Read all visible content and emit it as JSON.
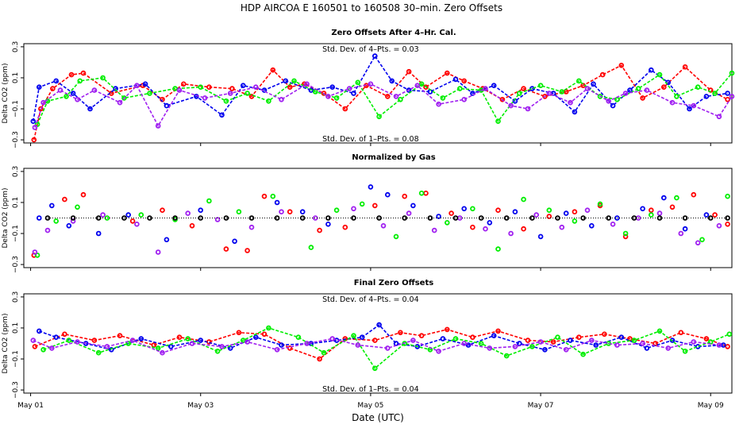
{
  "figure": {
    "title": "HDP   AIRCOA E   160501 to 160508   30–min. Zero Offsets",
    "xlabel": "Date (UTC)"
  },
  "colors": {
    "red": "#ff0000",
    "blue": "#0000ee",
    "green": "#00ee00",
    "purple": "#a020f0",
    "black": "#000000"
  },
  "chart_data": [
    {
      "type": "scatter",
      "title": "Zero Offsets After 4–Hr. Cal.",
      "ylabel": "Delta CO2 (ppm)",
      "xlabel": "",
      "ylim": [
        -0.32,
        0.32
      ],
      "xlim": [
        -0.08,
        8.25
      ],
      "yticks": [
        -0.3,
        -0.1,
        0.1,
        0.3
      ],
      "ytick_labels": [
        "−0.3",
        "−0.1",
        "0.1",
        "0.3"
      ],
      "xticks": [
        0,
        2,
        4,
        6,
        8
      ],
      "xtick_labels": [
        "May 01",
        "May 03",
        "May 05",
        "May 07",
        "May 09"
      ],
      "annotations": [
        "Std. Dev. of 4–Pts. =  0.03",
        "Std. Dev. of 1–Pts. =  0.08"
      ],
      "lines_connected": true,
      "series": [
        {
          "name": "red",
          "x": [
            0.04,
            0.12,
            0.26,
            0.48,
            0.62,
            0.95,
            1.32,
            1.55,
            1.8,
            2.1,
            2.37,
            2.6,
            2.85,
            3.05,
            3.22,
            3.45,
            3.7,
            3.95,
            4.2,
            4.45,
            4.65,
            4.9,
            5.1,
            5.32,
            5.55,
            5.8,
            6.05,
            6.3,
            6.5,
            6.73,
            6.95,
            7.2,
            7.45,
            7.7,
            8.0,
            8.2
          ],
          "y": [
            -0.3,
            -0.1,
            0.03,
            0.12,
            0.13,
            0.0,
            0.05,
            -0.04,
            0.06,
            0.04,
            0.03,
            -0.02,
            0.15,
            0.04,
            0.06,
            0.0,
            -0.1,
            0.05,
            -0.02,
            0.14,
            0.04,
            0.13,
            0.08,
            0.03,
            -0.04,
            0.03,
            -0.02,
            0.01,
            0.05,
            0.12,
            0.18,
            -0.03,
            0.04,
            0.17,
            0.02,
            -0.04
          ]
        },
        {
          "name": "blue",
          "x": [
            0.03,
            0.1,
            0.3,
            0.5,
            0.7,
            1.0,
            1.35,
            1.6,
            1.95,
            2.25,
            2.5,
            2.75,
            3.0,
            3.3,
            3.55,
            3.8,
            4.05,
            4.25,
            4.45,
            4.7,
            5.0,
            5.2,
            5.45,
            5.7,
            5.9,
            6.15,
            6.4,
            6.62,
            6.85,
            7.05,
            7.3,
            7.5,
            7.75,
            7.95,
            8.2
          ],
          "y": [
            -0.18,
            0.04,
            0.08,
            0.0,
            -0.1,
            0.03,
            0.06,
            -0.08,
            -0.02,
            -0.14,
            0.05,
            0.02,
            0.08,
            0.02,
            0.04,
            0.0,
            0.24,
            0.08,
            0.02,
            0.01,
            0.09,
            0.0,
            0.05,
            -0.05,
            0.03,
            0.0,
            -0.12,
            0.06,
            -0.08,
            0.02,
            0.15,
            0.07,
            -0.1,
            -0.02,
            0.0
          ]
        },
        {
          "name": "green",
          "x": [
            0.08,
            0.2,
            0.42,
            0.58,
            0.85,
            1.1,
            1.4,
            1.7,
            2.0,
            2.3,
            2.55,
            2.8,
            3.1,
            3.35,
            3.6,
            3.85,
            4.1,
            4.35,
            4.6,
            4.85,
            5.05,
            5.3,
            5.5,
            5.75,
            6.0,
            6.25,
            6.45,
            6.7,
            6.9,
            7.15,
            7.4,
            7.6,
            7.85,
            8.05,
            8.25
          ],
          "y": [
            -0.2,
            -0.05,
            -0.02,
            0.08,
            0.1,
            -0.03,
            0.0,
            0.03,
            0.04,
            -0.05,
            0.0,
            -0.05,
            0.08,
            0.01,
            -0.03,
            0.07,
            -0.15,
            -0.04,
            0.06,
            -0.03,
            0.03,
            0.02,
            -0.18,
            0.0,
            0.05,
            0.01,
            0.08,
            -0.02,
            -0.04,
            0.03,
            0.12,
            -0.02,
            0.04,
            0.0,
            0.13
          ]
        },
        {
          "name": "purple",
          "x": [
            0.05,
            0.15,
            0.35,
            0.55,
            0.75,
            1.05,
            1.25,
            1.5,
            1.75,
            2.05,
            2.35,
            2.65,
            2.95,
            3.25,
            3.5,
            3.75,
            4.0,
            4.3,
            4.55,
            4.8,
            5.1,
            5.35,
            5.65,
            5.85,
            6.1,
            6.35,
            6.55,
            6.8,
            7.0,
            7.25,
            7.55,
            7.8,
            8.1,
            8.25
          ],
          "y": [
            -0.22,
            -0.06,
            0.02,
            -0.04,
            0.02,
            -0.06,
            0.05,
            -0.21,
            0.02,
            -0.03,
            0.0,
            0.04,
            -0.04,
            0.06,
            -0.02,
            0.03,
            0.06,
            -0.02,
            0.05,
            -0.07,
            -0.04,
            0.03,
            -0.08,
            -0.1,
            0.0,
            -0.06,
            0.03,
            -0.05,
            0.0,
            0.02,
            -0.06,
            -0.08,
            -0.15,
            -0.02
          ]
        }
      ]
    },
    {
      "type": "scatter",
      "title": "Normalized by Gas",
      "ylabel": "Delta CO2 (ppm)",
      "xlabel": "",
      "ylim": [
        -0.32,
        0.32
      ],
      "xlim": [
        -0.08,
        8.25
      ],
      "yticks": [
        -0.3,
        -0.1,
        0.1,
        0.3
      ],
      "ytick_labels": [
        "−0.3",
        "−0.1",
        "0.1",
        "0.3"
      ],
      "xticks": [
        0,
        2,
        4,
        6,
        8
      ],
      "xtick_labels": [
        "May 01",
        "May 03",
        "May 05",
        "May 07",
        "May 09"
      ],
      "annotations": [],
      "lines_connected": false,
      "series": [
        {
          "name": "red",
          "x": [
            0.04,
            0.4,
            0.62,
            1.2,
            1.55,
            1.9,
            2.3,
            2.55,
            2.75,
            3.05,
            3.4,
            3.7,
            4.05,
            4.4,
            4.65,
            4.95,
            5.2,
            5.5,
            5.8,
            6.1,
            6.4,
            6.7,
            7.0,
            7.3,
            7.55,
            7.8,
            8.05,
            8.2
          ],
          "y": [
            -0.24,
            0.12,
            0.15,
            -0.02,
            0.05,
            -0.05,
            -0.2,
            -0.21,
            0.14,
            0.04,
            -0.08,
            -0.06,
            0.08,
            0.14,
            0.16,
            0.03,
            -0.06,
            0.05,
            -0.07,
            0.01,
            0.04,
            0.08,
            -0.12,
            0.05,
            0.07,
            0.15,
            0.02,
            -0.04
          ]
        },
        {
          "name": "blue",
          "x": [
            0.1,
            0.25,
            0.45,
            0.8,
            1.15,
            1.6,
            2.0,
            2.4,
            2.9,
            3.2,
            3.5,
            4.0,
            4.2,
            4.5,
            4.8,
            5.1,
            5.4,
            5.7,
            6.0,
            6.3,
            6.6,
            6.9,
            7.2,
            7.45,
            7.7,
            7.95
          ],
          "y": [
            0.0,
            0.08,
            -0.05,
            -0.1,
            0.02,
            -0.14,
            0.05,
            -0.15,
            0.1,
            0.04,
            -0.04,
            0.2,
            0.15,
            0.08,
            0.01,
            0.06,
            -0.03,
            0.04,
            -0.12,
            0.03,
            -0.05,
            0.0,
            0.06,
            0.13,
            -0.07,
            0.02
          ]
        },
        {
          "name": "green",
          "x": [
            0.08,
            0.3,
            0.55,
            0.9,
            1.3,
            1.7,
            2.1,
            2.45,
            2.85,
            3.3,
            3.6,
            3.9,
            4.3,
            4.6,
            4.9,
            5.2,
            5.5,
            5.8,
            6.1,
            6.4,
            6.7,
            7.0,
            7.3,
            7.6,
            7.9,
            8.2
          ],
          "y": [
            -0.24,
            -0.02,
            0.07,
            0.0,
            0.02,
            -0.01,
            0.11,
            0.04,
            0.14,
            -0.19,
            0.05,
            0.09,
            -0.12,
            0.16,
            -0.03,
            0.06,
            -0.2,
            0.12,
            0.05,
            -0.02,
            0.09,
            -0.1,
            0.02,
            0.13,
            -0.14,
            0.14
          ]
        },
        {
          "name": "purple",
          "x": [
            0.05,
            0.2,
            0.5,
            0.85,
            1.25,
            1.5,
            1.85,
            2.2,
            2.6,
            2.95,
            3.35,
            3.8,
            4.15,
            4.45,
            4.75,
            5.05,
            5.35,
            5.65,
            5.95,
            6.25,
            6.55,
            6.85,
            7.15,
            7.4,
            7.65,
            7.85,
            8.1
          ],
          "y": [
            -0.22,
            -0.08,
            -0.02,
            0.02,
            -0.04,
            -0.22,
            0.03,
            -0.01,
            -0.06,
            0.04,
            0.0,
            0.06,
            -0.05,
            0.03,
            -0.08,
            0.0,
            -0.07,
            -0.1,
            0.02,
            -0.06,
            0.05,
            -0.04,
            0.0,
            0.03,
            -0.1,
            -0.16,
            -0.05
          ]
        },
        {
          "name": "black",
          "x": [
            0.2,
            0.5,
            0.8,
            1.1,
            1.4,
            1.7,
            2.0,
            2.3,
            2.6,
            2.9,
            3.2,
            3.5,
            3.8,
            4.1,
            4.4,
            4.7,
            5.0,
            5.3,
            5.6,
            5.9,
            6.2,
            6.5,
            6.8,
            7.1,
            7.4,
            7.7,
            8.0,
            8.2
          ],
          "y": [
            0.0,
            0.0,
            0.0,
            0.0,
            0.0,
            0.0,
            0.0,
            0.0,
            0.0,
            0.0,
            0.0,
            0.0,
            0.0,
            0.0,
            0.0,
            0.0,
            0.0,
            0.0,
            0.0,
            0.0,
            0.0,
            0.0,
            0.0,
            0.0,
            0.0,
            0.0,
            0.0,
            0.0
          ]
        }
      ]
    },
    {
      "type": "scatter",
      "title": "Final Zero Offsets",
      "ylabel": "Delta CO2 (ppm)",
      "xlabel": "",
      "ylim": [
        -0.32,
        0.32
      ],
      "xlim": [
        -0.08,
        8.25
      ],
      "yticks": [
        -0.3,
        -0.1,
        0.1,
        0.3
      ],
      "ytick_labels": [
        "−0.3",
        "−0.1",
        "0.1",
        "0.3"
      ],
      "xticks": [
        0,
        2,
        4,
        6,
        8
      ],
      "xtick_labels": [
        "May 01",
        "May 03",
        "May 05",
        "May 07",
        "May 09"
      ],
      "annotations": [
        "Std. Dev. of 4–Pts. =  0.04",
        "Std. Dev. of 1–Pts. =  0.04"
      ],
      "lines_connected": true,
      "series": [
        {
          "name": "red",
          "x": [
            0.05,
            0.4,
            0.75,
            1.05,
            1.45,
            1.75,
            2.1,
            2.45,
            2.75,
            3.05,
            3.4,
            3.7,
            4.05,
            4.35,
            4.6,
            4.9,
            5.2,
            5.5,
            5.85,
            6.15,
            6.45,
            6.75,
            7.05,
            7.35,
            7.65,
            7.95,
            8.2
          ],
          "y": [
            -0.02,
            0.06,
            0.02,
            0.05,
            -0.01,
            0.04,
            0.01,
            0.07,
            0.06,
            -0.03,
            -0.1,
            0.03,
            0.02,
            0.07,
            0.05,
            0.09,
            0.04,
            0.08,
            0.02,
            0.01,
            0.04,
            0.06,
            0.03,
            0.0,
            0.07,
            0.03,
            -0.02
          ]
        },
        {
          "name": "blue",
          "x": [
            0.1,
            0.3,
            0.65,
            0.95,
            1.3,
            1.65,
            2.0,
            2.35,
            2.65,
            2.95,
            3.3,
            3.6,
            3.9,
            4.1,
            4.3,
            4.55,
            4.85,
            5.15,
            5.45,
            5.75,
            6.05,
            6.35,
            6.65,
            6.95,
            7.25,
            7.55,
            7.85,
            8.15
          ],
          "y": [
            0.08,
            0.04,
            0.0,
            -0.04,
            0.03,
            -0.02,
            0.02,
            -0.03,
            0.04,
            -0.01,
            0.0,
            0.02,
            0.04,
            0.12,
            0.0,
            -0.02,
            0.03,
            -0.01,
            0.05,
            0.0,
            -0.04,
            0.02,
            -0.01,
            0.04,
            -0.03,
            0.02,
            -0.02,
            -0.01
          ]
        },
        {
          "name": "green",
          "x": [
            0.15,
            0.45,
            0.8,
            1.15,
            1.5,
            1.85,
            2.2,
            2.5,
            2.8,
            3.15,
            3.45,
            3.8,
            4.05,
            4.4,
            4.7,
            5.0,
            5.3,
            5.6,
            5.9,
            6.2,
            6.5,
            6.8,
            7.1,
            7.4,
            7.7,
            8.0,
            8.22
          ],
          "y": [
            -0.04,
            0.02,
            -0.06,
            0.0,
            -0.03,
            0.03,
            -0.05,
            0.02,
            0.1,
            0.04,
            -0.06,
            0.05,
            -0.16,
            0.0,
            -0.04,
            0.03,
            0.0,
            -0.08,
            -0.02,
            0.04,
            -0.07,
            0.0,
            0.02,
            0.08,
            -0.05,
            0.01,
            0.06
          ]
        },
        {
          "name": "purple",
          "x": [
            0.03,
            0.25,
            0.55,
            0.9,
            1.2,
            1.55,
            1.9,
            2.25,
            2.55,
            2.9,
            3.25,
            3.55,
            3.85,
            4.2,
            4.5,
            4.8,
            5.1,
            5.4,
            5.7,
            6.0,
            6.3,
            6.6,
            6.9,
            7.2,
            7.5,
            7.8,
            8.1
          ],
          "y": [
            0.02,
            -0.03,
            0.01,
            -0.02,
            0.02,
            -0.06,
            0.0,
            -0.02,
            0.01,
            -0.04,
            0.0,
            0.03,
            -0.01,
            -0.03,
            0.02,
            -0.05,
            0.0,
            -0.03,
            -0.02,
            0.01,
            -0.04,
            0.02,
            -0.01,
            0.0,
            -0.03,
            0.01,
            -0.01
          ]
        }
      ]
    }
  ]
}
